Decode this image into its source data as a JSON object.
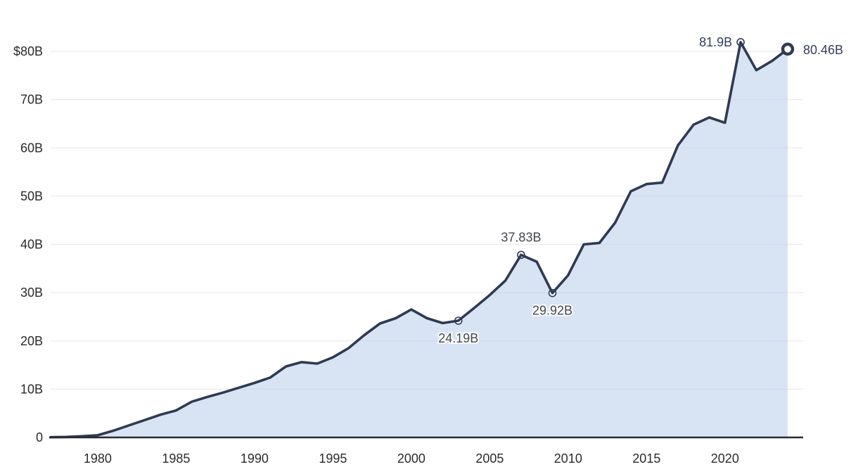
{
  "chart_data": {
    "type": "area",
    "title": "",
    "xlabel": "",
    "ylabel": "",
    "xlim": [
      1977,
      2024
    ],
    "ylim": [
      0,
      85
    ],
    "grid": "horizontal",
    "legend": "none",
    "x": [
      1977,
      1978,
      1979,
      1980,
      1981,
      1982,
      1983,
      1984,
      1985,
      1986,
      1987,
      1988,
      1989,
      1990,
      1991,
      1992,
      1993,
      1994,
      1995,
      1996,
      1997,
      1998,
      1999,
      2000,
      2001,
      2002,
      2003,
      2004,
      2005,
      2006,
      2007,
      2008,
      2009,
      2010,
      2011,
      2012,
      2013,
      2014,
      2015,
      2016,
      2017,
      2018,
      2019,
      2020,
      2021,
      2022,
      2023,
      2024
    ],
    "series": [
      {
        "name": "value-billions-usd",
        "values": [
          0.05,
          0.1,
          0.25,
          0.45,
          1.4,
          2.5,
          3.6,
          4.7,
          5.6,
          7.4,
          8.4,
          9.3,
          10.3,
          11.3,
          12.4,
          14.7,
          15.6,
          15.3,
          16.6,
          18.5,
          21.2,
          23.6,
          24.7,
          26.5,
          24.7,
          23.7,
          24.19,
          26.8,
          29.5,
          32.5,
          37.83,
          36.4,
          29.92,
          33.6,
          40.0,
          40.3,
          44.5,
          51.0,
          52.5,
          52.8,
          60.5,
          64.8,
          66.3,
          65.2,
          81.9,
          76.1,
          78.0,
          80.46
        ]
      }
    ],
    "y_ticks": [
      {
        "v": 0,
        "label": "0"
      },
      {
        "v": 10,
        "label": "10B"
      },
      {
        "v": 20,
        "label": "20B"
      },
      {
        "v": 30,
        "label": "30B"
      },
      {
        "v": 40,
        "label": "40B"
      },
      {
        "v": 50,
        "label": "50B"
      },
      {
        "v": 60,
        "label": "60B"
      },
      {
        "v": 70,
        "label": "70B"
      },
      {
        "v": 80,
        "label": "$80B"
      }
    ],
    "x_ticks": [
      {
        "v": 1980,
        "label": "1980"
      },
      {
        "v": 1985,
        "label": "1985"
      },
      {
        "v": 1990,
        "label": "1990"
      },
      {
        "v": 1995,
        "label": "1995"
      },
      {
        "v": 2000,
        "label": "2000"
      },
      {
        "v": 2005,
        "label": "2005"
      },
      {
        "v": 2010,
        "label": "2010"
      },
      {
        "v": 2015,
        "label": "2015"
      },
      {
        "v": 2020,
        "label": "2020"
      }
    ],
    "annotations": [
      {
        "year": 2003,
        "value": 24.19,
        "label": "24.19B",
        "placement": "below",
        "style": "gray",
        "marker": "small"
      },
      {
        "year": 2007,
        "value": 37.83,
        "label": "37.83B",
        "placement": "above",
        "style": "gray",
        "marker": "small"
      },
      {
        "year": 2009,
        "value": 29.92,
        "label": "29.92B",
        "placement": "below",
        "style": "gray",
        "marker": "small"
      },
      {
        "year": 2021,
        "value": 81.9,
        "label": "81.9B",
        "placement": "left",
        "style": "navy",
        "marker": "small"
      },
      {
        "year": 2024,
        "value": 80.46,
        "label": "80.46B",
        "placement": "right",
        "style": "navy",
        "marker": "large"
      }
    ],
    "colors": {
      "line": "#2f3a52",
      "area_fill": "#b2c9e7",
      "grid": "#ebebeb",
      "axis": "#272b33",
      "tick_text": "#2b2b2b",
      "annotation_gray": "#41464e",
      "annotation_navy": "#333e59",
      "marker_fill": "#ffffff",
      "background": "#ffffff"
    }
  }
}
